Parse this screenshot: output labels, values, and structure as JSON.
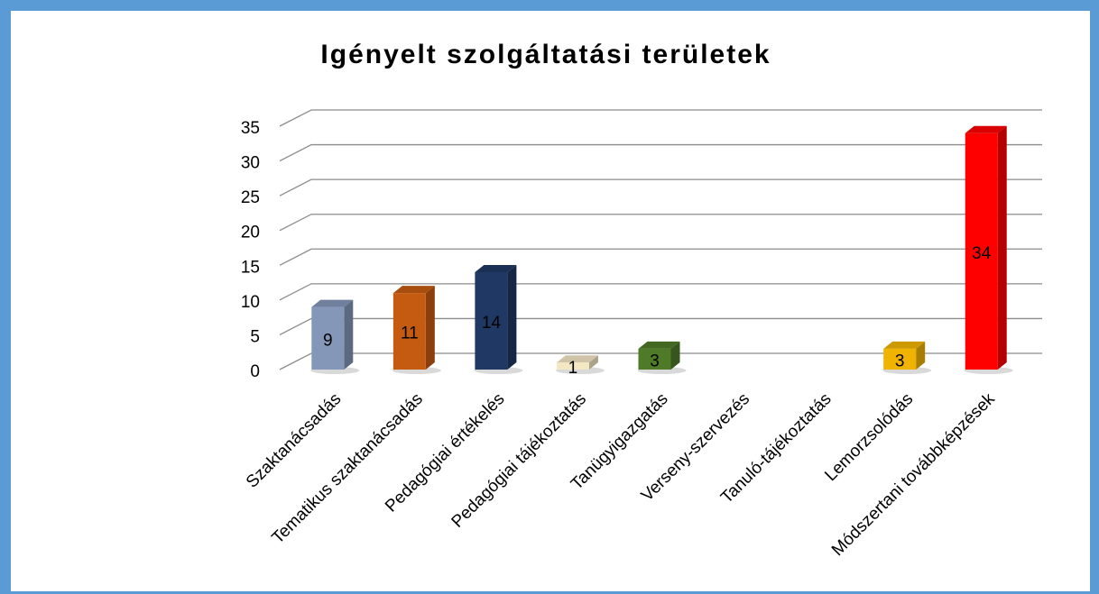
{
  "chart_data": {
    "type": "bar",
    "title": "Igényelt szolgáltatási területek",
    "categories": [
      "Szaktanácsadás",
      "Tematikus szaktanácsadás",
      "Pedagógiai értékelés",
      "Pedagógiai tájékoztatás",
      "Tanügyigazgatás",
      "Verseny-szervezés",
      "Tanuló-tájékoztatás",
      "Lemorzsolódás",
      "Módszertani továbbképzések"
    ],
    "values": [
      9,
      11,
      14,
      1,
      3,
      null,
      null,
      3,
      34
    ],
    "colors": [
      "#8497b8",
      "#c55a11",
      "#1f3864",
      "#f3e7c4",
      "#4f7a28",
      null,
      null,
      "#f0b400",
      "#ff0000"
    ],
    "ylim": [
      0,
      35
    ],
    "yticks": [
      0,
      5,
      10,
      15,
      20,
      25,
      30,
      35
    ],
    "grid": true,
    "three_d": true
  }
}
